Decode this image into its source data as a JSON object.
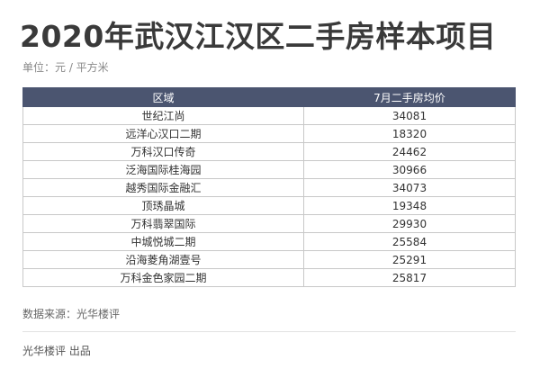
{
  "header": {
    "title": "2020年武汉江汉区二手房样本项目",
    "unit": "单位：元 / 平方米"
  },
  "table": {
    "columns": [
      "区域",
      "7月二手房均价"
    ],
    "rows": [
      [
        "世纪江尚",
        34081
      ],
      [
        "远洋心汉口二期",
        18320
      ],
      [
        "万科汉口传奇",
        24462
      ],
      [
        "泛海国际桂海园",
        30966
      ],
      [
        "越秀国际金融汇",
        34073
      ],
      [
        "顶琇晶城",
        19348
      ],
      [
        "万科翡翠国际",
        29930
      ],
      [
        "中城悦城二期",
        25584
      ],
      [
        "沿海菱角湖壹号",
        25291
      ],
      [
        "万科金色家园二期",
        25817
      ]
    ]
  },
  "footer": {
    "source": "数据来源：光华楼评",
    "producer": "光华楼评 出品"
  }
}
